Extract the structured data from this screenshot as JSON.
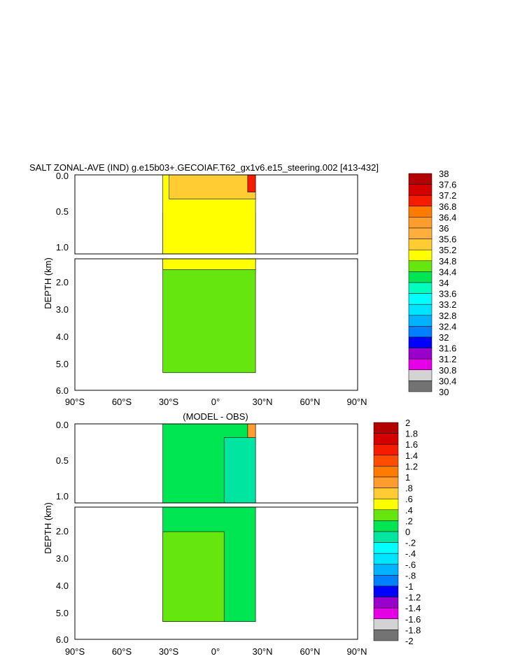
{
  "chart_data": [
    {
      "type": "heatmap",
      "title": "SALT ZONAL-AVE (IND) g.e15b03+.GECOIAF.T62_gx1v6.e15_steering.002 [413-432]",
      "ylabel": "DEPTH (km)",
      "xlabel": "",
      "xlim": [
        -90,
        90
      ],
      "x_ticks": [
        "90°S",
        "60°S",
        "30°S",
        "0°",
        "30°N",
        "60°N",
        "90°N"
      ],
      "y_ticks_upper": [
        "0.0",
        "0.5",
        "1.0"
      ],
      "y_ticks_lower": [
        "2.0",
        "3.0",
        "4.0",
        "5.0",
        "6.0"
      ],
      "ylim_upper": [
        0,
        1.15
      ],
      "ylim_lower": [
        1.15,
        6.0
      ],
      "legend_placement": "right",
      "colorbar_labels": [
        "38",
        "37.6",
        "37.2",
        "36.8",
        "36.4",
        "36",
        "35.6",
        "35.2",
        "34.8",
        "34.4",
        "34",
        "33.6",
        "33.2",
        "32.8",
        "32.4",
        "32",
        "31.6",
        "31.2",
        "30.8",
        "30.4",
        "30"
      ],
      "colorbar_colors": [
        "#b30000",
        "#d40000",
        "#f51c00",
        "#ff7b00",
        "#ff9c2e",
        "#ffad3d",
        "#ffcc33",
        "#ffff00",
        "#66e60f",
        "#00e653",
        "#00ffbf",
        "#00ffff",
        "#00e5ff",
        "#00b3ff",
        "#0080ff",
        "#0000ff",
        "#9900cc",
        "#e600e6",
        "#d3d3d3",
        "#737373"
      ],
      "data_extent": {
        "lat_min": -34,
        "lat_max": 25,
        "depth_max": 5.35
      },
      "regions": [
        {
          "name": "34.4-34.8",
          "depth_top": 0.55,
          "depth_bottom": 5.35,
          "lat_west": -34,
          "lat_east": 25,
          "value": 34.6
        },
        {
          "name": "34.8-35.2",
          "depth_top": 0.0,
          "depth_bottom": 1.55,
          "lat_west": -34,
          "lat_east": 25,
          "value": 35.0
        },
        {
          "name": "35.2-35.6",
          "depth_top": 0.0,
          "depth_bottom": 0.35,
          "lat_west": -30,
          "lat_east": 25,
          "value": 35.4
        },
        {
          "name": ">36",
          "depth_top": 0.0,
          "depth_bottom": 0.25,
          "lat_west": 20,
          "lat_east": 25,
          "value": 37.0
        }
      ]
    },
    {
      "type": "heatmap",
      "title": "(MODEL - OBS)",
      "ylabel": "DEPTH (km)",
      "xlabel": "",
      "xlim": [
        -90,
        90
      ],
      "x_ticks": [
        "90°S",
        "60°S",
        "30°S",
        "0°",
        "30°N",
        "60°N",
        "90°N"
      ],
      "y_ticks_upper": [
        "0.0",
        "0.5",
        "1.0"
      ],
      "y_ticks_lower": [
        "2.0",
        "3.0",
        "4.0",
        "5.0",
        "6.0"
      ],
      "ylim_upper": [
        0,
        1.15
      ],
      "ylim_lower": [
        1.15,
        6.0
      ],
      "legend_placement": "right",
      "colorbar_labels": [
        "2",
        "1.8",
        "1.6",
        "1.4",
        "1.2",
        "1",
        ".8",
        ".6",
        ".4",
        ".2",
        "0",
        "-.2",
        "-.4",
        "-.6",
        "-.8",
        "-1",
        "-1.2",
        "-1.4",
        "-1.6",
        "-1.8",
        "-2"
      ],
      "colorbar_colors": [
        "#b30000",
        "#d40000",
        "#f51c00",
        "#ff4d00",
        "#ff7b00",
        "#ff9c2e",
        "#ffcc33",
        "#ffff00",
        "#66e60f",
        "#00e653",
        "#00e6a0",
        "#00ffff",
        "#00e5ff",
        "#00b3ff",
        "#0080ff",
        "#0000ff",
        "#9900cc",
        "#e600e6",
        "#d3d3d3",
        "#737373"
      ],
      "data_extent": {
        "lat_min": -34,
        "lat_max": 25,
        "depth_max": 5.35
      },
      "regions": [
        {
          "name": "0-0.2",
          "depth_top": 0.0,
          "depth_bottom": 5.35,
          "lat_west": -34,
          "lat_east": 25,
          "value": 0.1
        },
        {
          "name": "0.2-0.4",
          "depth_top": 2.05,
          "depth_bottom": 5.35,
          "lat_west": -34,
          "lat_east": 5,
          "value": 0.3
        },
        {
          "name": "-0.2-0",
          "depth_top": 0.2,
          "depth_bottom": 1.15,
          "lat_west": 5,
          "lat_east": 25,
          "value": -0.1
        },
        {
          "name": ">0.4",
          "depth_top": 0.0,
          "depth_bottom": 0.2,
          "lat_west": 20,
          "lat_east": 25,
          "value": 0.8
        }
      ]
    }
  ]
}
